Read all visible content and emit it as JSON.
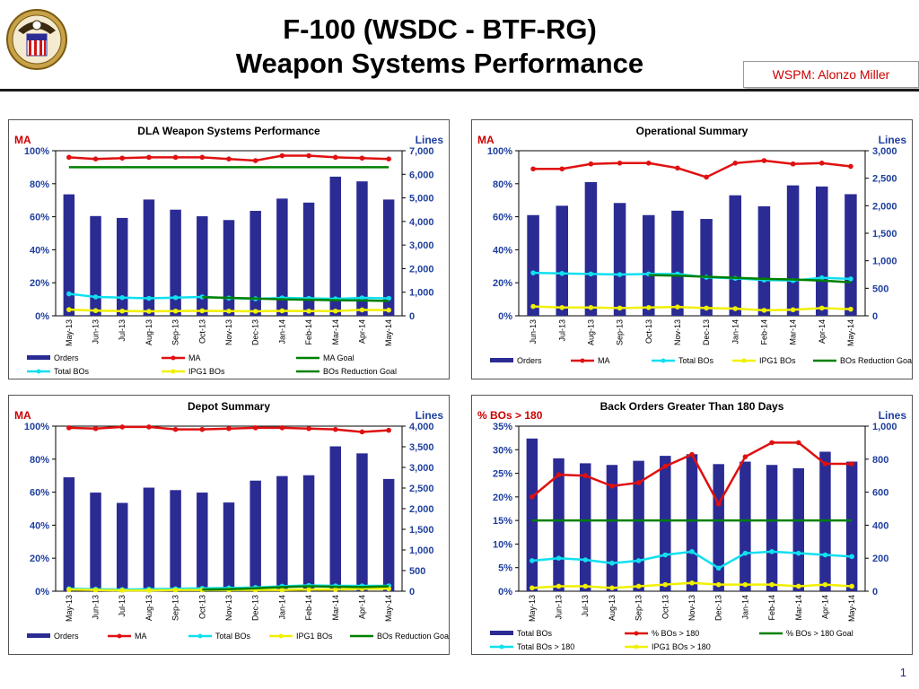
{
  "header": {
    "title_line1": "F-100 (WSDC - BTF-RG)",
    "title_line2": "Weapon Systems Performance",
    "wspm_label": "WSPM:  Alonzo Miller"
  },
  "page_number": "1",
  "colors": {
    "bar": "#2b2b94",
    "ma": "#e01010",
    "goal": "#008000",
    "total_bos": "#10e0f0",
    "ipg1": "#f0f000",
    "accent_red": "#cc0000",
    "axis_label_blue": "#1f3f9f"
  },
  "icons": {
    "logo": "dla-seal-icon"
  },
  "chart_data": [
    {
      "id": "dla",
      "type": "bar",
      "title": "DLA Weapon Systems Performance",
      "left_axis_title": "MA",
      "right_axis_title": "Lines",
      "categories": [
        "May-13",
        "Jun-13",
        "Jul-13",
        "Aug-13",
        "Sep-13",
        "Oct-13",
        "Nov-13",
        "Dec-13",
        "Jan-14",
        "Feb-14",
        "Mar-14",
        "Apr-14",
        "May-14"
      ],
      "left_ticks": [
        "0%",
        "20%",
        "40%",
        "60%",
        "80%",
        "100%"
      ],
      "right_ticks": [
        "0",
        "1,000",
        "2,000",
        "3,000",
        "4,000",
        "5,000",
        "6,000",
        "7,000"
      ],
      "ylim_left": [
        0,
        100
      ],
      "ylim_right": [
        0,
        7000
      ],
      "legend_cols": 3,
      "series": [
        {
          "name": "Orders",
          "kind": "bar",
          "axis": "right",
          "color": "#2b2b94",
          "values": [
            5150,
            4230,
            4150,
            4930,
            4500,
            4220,
            4060,
            4450,
            4970,
            4800,
            5900,
            5700,
            4930
          ]
        },
        {
          "name": "MA",
          "kind": "line",
          "axis": "left",
          "color": "#e01010",
          "values": [
            96,
            95,
            95.5,
            96,
            96,
            96,
            95,
            94,
            97,
            97,
            96,
            95.5,
            95
          ]
        },
        {
          "name": "MA Goal",
          "kind": "goal",
          "axis": "left",
          "color": "#008000",
          "values": [
            90,
            90,
            90,
            90,
            90,
            90,
            90,
            90,
            90,
            90,
            90,
            90,
            90
          ]
        },
        {
          "name": "Total BOs",
          "kind": "line",
          "axis": "right",
          "color": "#10e0f0",
          "values": [
            930,
            800,
            770,
            740,
            770,
            800,
            750,
            720,
            760,
            740,
            720,
            760,
            740
          ]
        },
        {
          "name": "IPG1 BOs",
          "kind": "line",
          "axis": "right",
          "color": "#f0f000",
          "values": [
            260,
            220,
            200,
            190,
            200,
            210,
            200,
            190,
            210,
            200,
            200,
            250,
            240
          ]
        },
        {
          "name": "BOs Reduction Goal",
          "kind": "line",
          "axis": "right",
          "color": "#008000",
          "start": 5,
          "values": [
            null,
            null,
            null,
            null,
            null,
            790,
            760,
            730,
            700,
            680,
            660,
            650,
            630
          ]
        }
      ]
    },
    {
      "id": "ops",
      "type": "bar",
      "title": "Operational Summary",
      "left_axis_title": "MA",
      "right_axis_title": "Lines",
      "categories": [
        "Jun-13",
        "Jul-13",
        "Aug-13",
        "Sep-13",
        "Oct-13",
        "Nov-13",
        "Dec-13",
        "Jan-14",
        "Feb-14",
        "Mar-14",
        "Apr-14",
        "May-14"
      ],
      "left_ticks": [
        "0%",
        "20%",
        "40%",
        "60%",
        "80%",
        "100%"
      ],
      "right_ticks": [
        "0",
        "500",
        "1,000",
        "1,500",
        "2,000",
        "2,500",
        "3,000"
      ],
      "ylim_left": [
        0,
        100
      ],
      "ylim_right": [
        0,
        3000
      ],
      "legend_cols": 5,
      "series": [
        {
          "name": "Orders",
          "kind": "bar",
          "axis": "right",
          "color": "#2b2b94",
          "values": [
            1830,
            2000,
            2430,
            2050,
            1830,
            1910,
            1760,
            2190,
            1990,
            2370,
            2350,
            2210
          ]
        },
        {
          "name": "MA",
          "kind": "line",
          "axis": "left",
          "color": "#e01010",
          "values": [
            89,
            89,
            92,
            92.5,
            92.5,
            89.5,
            84,
            92.5,
            94,
            92,
            92.5,
            90.5
          ]
        },
        {
          "name": "Total BOs",
          "kind": "line",
          "axis": "right",
          "color": "#10e0f0",
          "values": [
            780,
            770,
            760,
            750,
            760,
            760,
            700,
            680,
            650,
            640,
            690,
            670
          ]
        },
        {
          "name": "IPG1 BOs",
          "kind": "line",
          "axis": "right",
          "color": "#f0f000",
          "values": [
            170,
            150,
            150,
            140,
            150,
            160,
            140,
            130,
            100,
            110,
            140,
            120
          ]
        },
        {
          "name": "BOs Reduction Goal",
          "kind": "line",
          "axis": "right",
          "color": "#008000",
          "start": 4,
          "values": [
            null,
            null,
            null,
            null,
            740,
            730,
            710,
            690,
            670,
            660,
            640,
            610
          ]
        }
      ]
    },
    {
      "id": "depot",
      "type": "bar",
      "title": "Depot Summary",
      "left_axis_title": "MA",
      "right_axis_title": "Lines",
      "categories": [
        "May-13",
        "Jun-13",
        "Jul-13",
        "Aug-13",
        "Sep-13",
        "Oct-13",
        "Nov-13",
        "Dec-13",
        "Jan-14",
        "Feb-14",
        "Mar-14",
        "Apr-14",
        "May-14"
      ],
      "left_ticks": [
        "0%",
        "20%",
        "40%",
        "60%",
        "80%",
        "100%"
      ],
      "right_ticks": [
        "0",
        "500",
        "1,000",
        "1,500",
        "2,000",
        "2,500",
        "3,000",
        "3,500",
        "4,000"
      ],
      "ylim_left": [
        0,
        100
      ],
      "ylim_right": [
        0,
        4000
      ],
      "legend_cols": 5,
      "series": [
        {
          "name": "Orders",
          "kind": "bar",
          "axis": "right",
          "color": "#2b2b94",
          "values": [
            2760,
            2390,
            2140,
            2510,
            2450,
            2390,
            2150,
            2680,
            2790,
            2810,
            3510,
            3340,
            2720
          ]
        },
        {
          "name": "MA",
          "kind": "line",
          "axis": "left",
          "color": "#e01010",
          "values": [
            99,
            98.5,
            99.5,
            99.5,
            98,
            98,
            98.5,
            99,
            99,
            98.5,
            98,
            96.5,
            97.5
          ]
        },
        {
          "name": "Total BOs",
          "kind": "line",
          "axis": "right",
          "color": "#10e0f0",
          "values": [
            60,
            50,
            40,
            50,
            60,
            70,
            80,
            90,
            120,
            140,
            130,
            130,
            130
          ]
        },
        {
          "name": "IPG1 BOs",
          "kind": "line",
          "axis": "right",
          "color": "#f0f000",
          "values": [
            40,
            30,
            20,
            20,
            30,
            30,
            30,
            30,
            30,
            40,
            40,
            60,
            60
          ]
        },
        {
          "name": "BOs Reduction Goal",
          "kind": "line",
          "axis": "right",
          "color": "#008000",
          "start": 5,
          "values": [
            null,
            null,
            null,
            null,
            null,
            40,
            50,
            70,
            100,
            120,
            110,
            100,
            120
          ]
        }
      ]
    },
    {
      "id": "bo180",
      "type": "bar",
      "title": "Back Orders Greater Than 180 Days",
      "left_axis_title": "% BOs > 180",
      "right_axis_title": "Lines",
      "categories": [
        "May-13",
        "Jun-13",
        "Jul-13",
        "Aug-13",
        "Sep-13",
        "Oct-13",
        "Nov-13",
        "Dec-13",
        "Jan-14",
        "Feb-14",
        "Mar-14",
        "Apr-14",
        "May-14"
      ],
      "left_ticks": [
        "0%",
        "5%",
        "10%",
        "15%",
        "20%",
        "25%",
        "30%",
        "35%"
      ],
      "right_ticks": [
        "0",
        "200",
        "400",
        "600",
        "800",
        "1,000"
      ],
      "ylim_left": [
        0,
        35
      ],
      "ylim_right": [
        0,
        1000
      ],
      "legend_cols": 3,
      "series": [
        {
          "name": "Total BOs",
          "kind": "bar",
          "axis": "right",
          "color": "#2b2b94",
          "values": [
            925,
            805,
            775,
            765,
            790,
            820,
            830,
            770,
            785,
            765,
            745,
            845,
            785
          ]
        },
        {
          "name": "% BOs > 180",
          "kind": "line",
          "axis": "left",
          "color": "#e01010",
          "values": [
            20,
            24.7,
            24.5,
            22.3,
            23,
            26.5,
            29,
            18.5,
            28.5,
            31.5,
            31.5,
            27,
            27
          ]
        },
        {
          "name": "% BOs > 180 Goal",
          "kind": "goal",
          "axis": "left",
          "color": "#008000",
          "values": [
            15,
            15,
            15,
            15,
            15,
            15,
            15,
            15,
            15,
            15,
            15,
            15,
            15
          ]
        },
        {
          "name": "Total BOs > 180",
          "kind": "line",
          "axis": "right",
          "color": "#10e0f0",
          "values": [
            185,
            200,
            190,
            170,
            185,
            220,
            240,
            140,
            230,
            240,
            230,
            220,
            210
          ]
        },
        {
          "name": "IPG1 BOs > 180",
          "kind": "line",
          "axis": "right",
          "color": "#f0f000",
          "values": [
            20,
            30,
            30,
            20,
            30,
            40,
            50,
            40,
            40,
            40,
            30,
            40,
            30
          ]
        }
      ]
    }
  ]
}
